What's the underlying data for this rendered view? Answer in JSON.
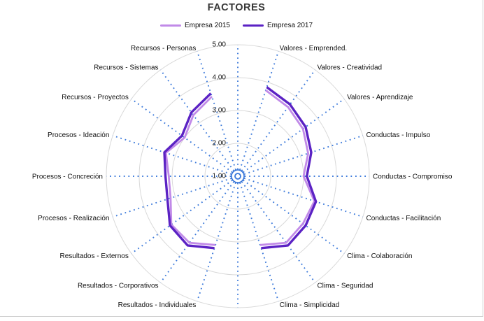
{
  "page": {
    "title": "FACTORES"
  },
  "legend": [
    {
      "label": "Empresa 2015",
      "color": "#c18ae8"
    },
    {
      "label": "Empresa 2017",
      "color": "#5b22c4"
    }
  ],
  "chart_data": {
    "type": "radar",
    "title": "FACTORES",
    "legend_position": "top",
    "axis": {
      "min": 1,
      "max": 5,
      "step": 1,
      "tick_labels": [
        "1.00",
        "2.00",
        "3.00",
        "4.00",
        "5.00"
      ]
    },
    "grid_color": "#d9d9d9",
    "spoke_color": "#3e7bdb",
    "center_circle_color": "#2e6fd6",
    "categories": [
      "",
      "Valores - Emprended.",
      "Valores - Creatividad",
      "Valores - Aprendizaje",
      "Conductas - Impulso",
      "Conductas - Compromiso",
      "Conductas - Facilitación",
      "Clima - Colaboración",
      "Clima -  Seguridad",
      "Clima - Simplicidad",
      "",
      "Resultados - Individuales",
      "Resultados - Corporativos",
      "Resultados - Externos",
      "Procesos - Realización",
      "Procesos - Concreción",
      "Procesos - Ideación",
      "Recursos - Proyectos",
      "Recursos - Sistemas",
      "Recursos - Personas"
    ],
    "series": [
      {
        "name": "Empresa 2015",
        "color": "#c18ae8",
        "values": [
          null,
          3.75,
          3.6,
          3.45,
          3.25,
          3.0,
          3.45,
          3.45,
          3.5,
          3.2,
          null,
          3.2,
          3.5,
          3.5,
          3.15,
          3.1,
          3.3,
          3.0,
          3.3,
          3.55
        ]
      },
      {
        "name": "Empresa 2017",
        "color": "#5b22c4",
        "values": [
          null,
          3.85,
          3.7,
          3.55,
          3.35,
          3.1,
          3.5,
          3.55,
          3.6,
          3.3,
          null,
          3.3,
          3.6,
          3.55,
          3.25,
          3.2,
          3.35,
          3.1,
          3.4,
          3.65
        ]
      }
    ]
  }
}
